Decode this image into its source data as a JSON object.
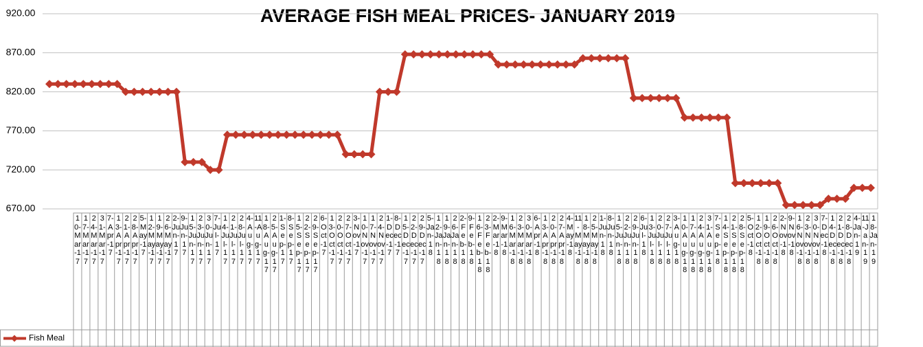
{
  "chart_data": {
    "type": "line",
    "title": "AVERAGE FISH MEAL PRICES- JANUARY 2019",
    "categories": [
      "10-Mar-17",
      "17-Mar-17",
      "24-Mar-17",
      "31-Mar-17",
      "7-Apr-17",
      "13-Apr-17",
      "21-Apr-17",
      "28-Apr-17",
      "5-May-17",
      "12-May-17",
      "19-May-17",
      "26-May-17",
      "2-Jun-17",
      "9-Jun-17",
      "15-Jun-17",
      "23-Jun-17",
      "30-Jun-17",
      "7-Jul-17",
      "14-Jul-17",
      "21-Jul-17",
      "28-Jul-17",
      "4-Aug-17",
      "11-Aug-17",
      "18-Aug-17",
      "25-Aug-17",
      "1-Sep-17",
      "8-Sep-17",
      "15-Sep-17",
      "22-Sep-17",
      "29-Sep-17",
      "6-Oct-17",
      "13-Oct-17",
      "20-Oct-17",
      "27-Oct-17",
      "3-Nov-17",
      "10-Nov-17",
      "17-Nov-17",
      "24-Nov-17",
      "1-Dec-17",
      "8-Dec-17",
      "15-Dec-17",
      "22-Dec-17",
      "29-Dec-17",
      "5-Jan-18",
      "12-Jan-18",
      "19-Jan-18",
      "26-Jan-18",
      "2-Feb-18",
      "9-Feb-18",
      "16-Feb-18",
      "23-Feb-18",
      "2-Mar-18",
      "9-Mar-18",
      "16-Mar-18",
      "23-Mar-18",
      "30-Mar-18",
      "6-Apr-18",
      "13-Apr-18",
      "20-Apr-18",
      "27-Apr-18",
      "4-May-18",
      "11-May-18",
      "18-May-18",
      "25-May-18",
      "1-Jun-18",
      "8-Jun-18",
      "15-Jun-18",
      "22-Jun-18",
      "29-Jun-18",
      "6-Jul-18",
      "13-Jul-18",
      "20-Jul-18",
      "27-Jul-18",
      "3-Aug-18",
      "10-Aug-18",
      "17-Aug-18",
      "24-Aug-18",
      "31-Aug-18",
      "7-Sep-18",
      "14-Sep-18",
      "21-Sep-18",
      "28-Sep-18",
      "5-Oct-18",
      "12-Oct-18",
      "19-Oct-18",
      "26-Oct-18",
      "2-Nov-18",
      "9-Nov-18",
      "16-Nov-18",
      "23-Nov-18",
      "30-Nov-18",
      "7-Dec-18",
      "14-Dec-18",
      "21-Dec-18",
      "28-Dec-18",
      "4-Jan-19",
      "11-Jan-19",
      "18-Jan-19"
    ],
    "series": [
      {
        "name": "Fish Meal",
        "color": "#c0392b",
        "values": [
          830,
          830,
          830,
          830,
          830,
          830,
          830,
          830,
          830,
          820,
          820,
          820,
          820,
          820,
          820,
          820,
          730,
          730,
          730,
          720,
          720,
          765,
          765,
          765,
          765,
          765,
          765,
          765,
          765,
          765,
          765,
          765,
          765,
          765,
          765,
          740,
          740,
          740,
          740,
          820,
          820,
          820,
          868,
          868,
          868,
          868,
          868,
          868,
          868,
          868,
          868,
          868,
          868,
          855,
          855,
          855,
          855,
          855,
          855,
          855,
          855,
          855,
          855,
          863,
          863,
          863,
          863,
          863,
          863,
          812,
          812,
          812,
          812,
          812,
          812,
          787,
          787,
          787,
          787,
          787,
          787,
          703,
          703,
          703,
          703,
          703,
          703,
          675,
          675,
          675,
          675,
          675,
          683,
          683,
          683,
          697,
          697,
          697
        ]
      }
    ],
    "ylim": [
      670,
      920
    ],
    "yticks": [
      {
        "value": 670,
        "label": "670.00"
      },
      {
        "value": 720,
        "label": "720.00"
      },
      {
        "value": 770,
        "label": "770.00"
      },
      {
        "value": 820,
        "label": "820.00"
      },
      {
        "value": 870,
        "label": "870.00"
      },
      {
        "value": 920,
        "label": "920.00"
      }
    ],
    "grid": true
  }
}
